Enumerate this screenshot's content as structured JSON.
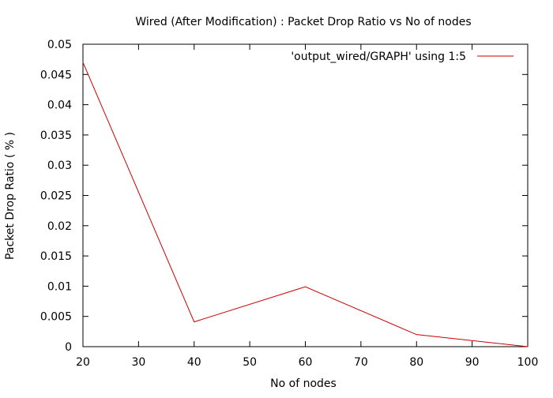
{
  "chart_data": {
    "type": "line",
    "title": "Wired (After Modification) : Packet Drop Ratio vs No of nodes",
    "xlabel": "No of nodes",
    "ylabel": "Packet Drop Ratio ( % )",
    "xlim": [
      20,
      100
    ],
    "ylim": [
      0,
      0.05
    ],
    "xticks": [
      "20",
      "30",
      "40",
      "50",
      "60",
      "70",
      "80",
      "90",
      "100"
    ],
    "yticks": [
      "0",
      "0.005",
      "0.01",
      "0.015",
      "0.02",
      "0.025",
      "0.03",
      "0.035",
      "0.04",
      "0.045",
      "0.05"
    ],
    "grid": false,
    "legend_position": "top-right",
    "series": [
      {
        "name": "'output_wired/GRAPH' using 1:5",
        "color": "#cc0000",
        "x": [
          20,
          40,
          60,
          80,
          100
        ],
        "y": [
          0.047,
          0.0041,
          0.0099,
          0.002,
          0
        ]
      }
    ]
  }
}
